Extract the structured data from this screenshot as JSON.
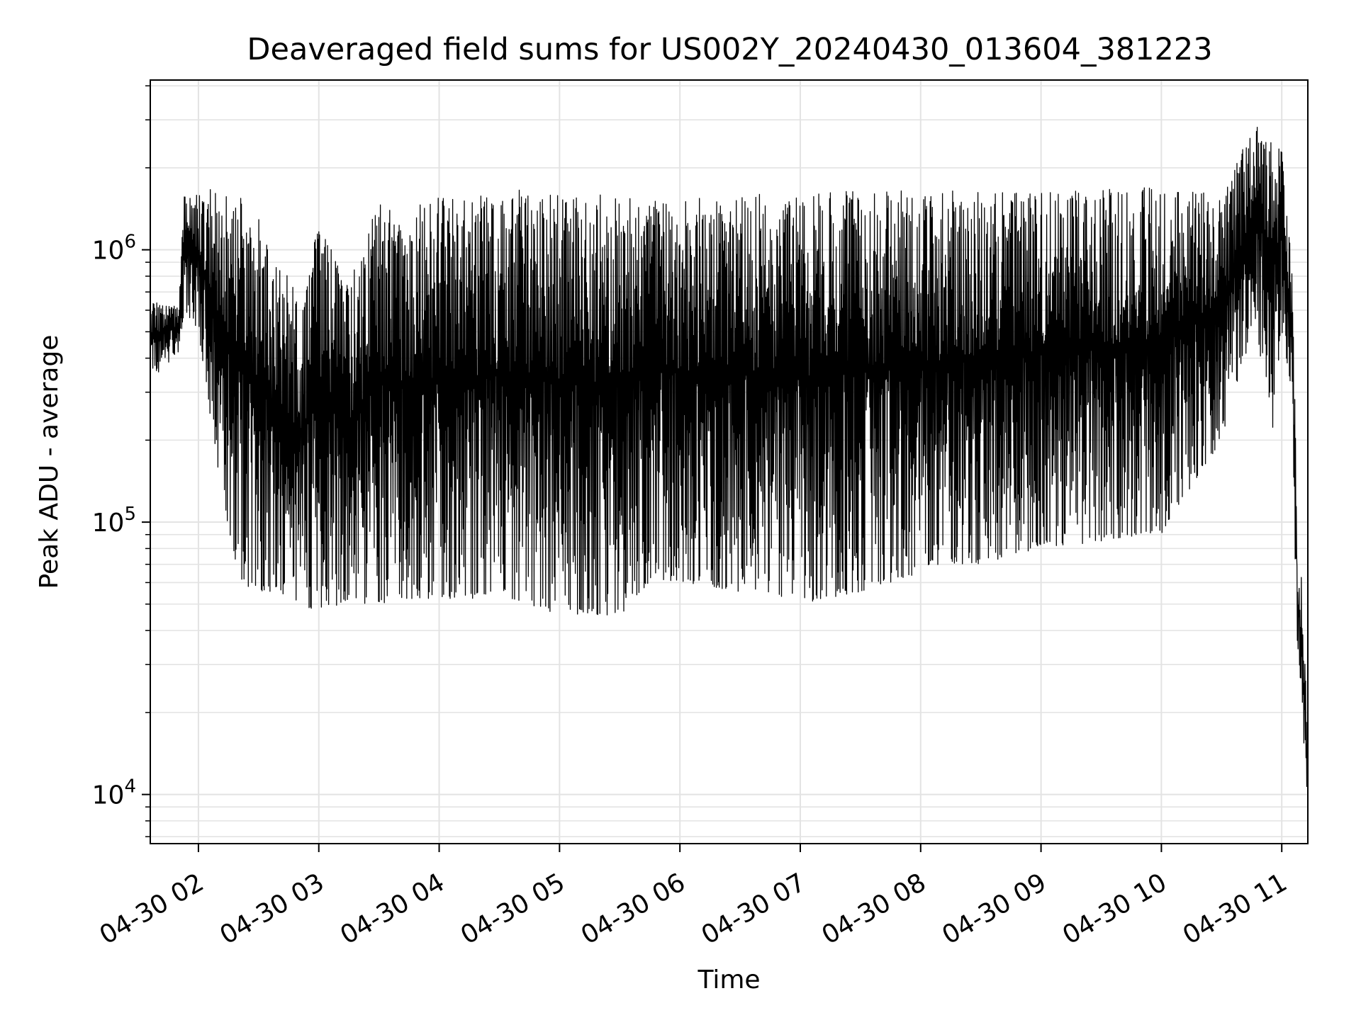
{
  "chart_data": {
    "type": "line",
    "title": "Deaveraged field sums for US002Y_20240430_013604_381223",
    "xlabel": "Time",
    "ylabel": "Peak ADU - average",
    "yscale": "log",
    "grid": true,
    "x_unit": "hours (04-30)",
    "xlim": [
      "04-30 01:36",
      "04-30 11:13"
    ],
    "ylim": [
      6600,
      4200000
    ],
    "x_ticks": [
      "04-30 02",
      "04-30 03",
      "04-30 04",
      "04-30 05",
      "04-30 06",
      "04-30 07",
      "04-30 08",
      "04-30 09",
      "04-30 10",
      "04-30 11"
    ],
    "y_ticks": [
      {
        "base": "10",
        "exp": "4",
        "value": 10000
      },
      {
        "base": "10",
        "exp": "5",
        "value": 100000
      },
      {
        "base": "10",
        "exp": "6",
        "value": 1000000
      }
    ],
    "line_color": "#000000",
    "series": [
      {
        "envelope": {
          "x": [
            "01:36",
            "01:50",
            "01:53",
            "02:00",
            "02:10",
            "02:20",
            "02:30",
            "02:40",
            "02:50",
            "03:00",
            "03:15",
            "03:30",
            "03:45",
            "04:00",
            "04:15",
            "04:30",
            "04:45",
            "05:00",
            "05:15",
            "05:30",
            "05:45",
            "06:00",
            "06:30",
            "07:00",
            "07:30",
            "08:00",
            "08:30",
            "09:00",
            "09:30",
            "10:00",
            "10:30",
            "10:47",
            "10:55",
            "11:00",
            "11:05",
            "11:08",
            "11:10",
            "11:13"
          ],
          "upper": [
            650000,
            620000,
            1600000,
            1700000,
            1700000,
            1600000,
            1300000,
            900000,
            700000,
            1200000,
            800000,
            1500000,
            1400000,
            1600000,
            1600000,
            1600000,
            1700000,
            1600000,
            1600000,
            1600000,
            1600000,
            1550000,
            1600000,
            1600000,
            1650000,
            1650000,
            1650000,
            1650000,
            1700000,
            1700000,
            1600000,
            3100000,
            2700000,
            2300000,
            900000,
            100000,
            60000,
            18000
          ],
          "lower": [
            330000,
            420000,
            600000,
            500000,
            150000,
            60000,
            55000,
            55000,
            50000,
            47000,
            50000,
            50000,
            52000,
            52000,
            52000,
            55000,
            48000,
            45000,
            45000,
            45000,
            60000,
            60000,
            55000,
            50000,
            55000,
            65000,
            70000,
            80000,
            85000,
            90000,
            200000,
            550000,
            200000,
            500000,
            300000,
            20000,
            20000,
            9000
          ]
        }
      }
    ]
  }
}
